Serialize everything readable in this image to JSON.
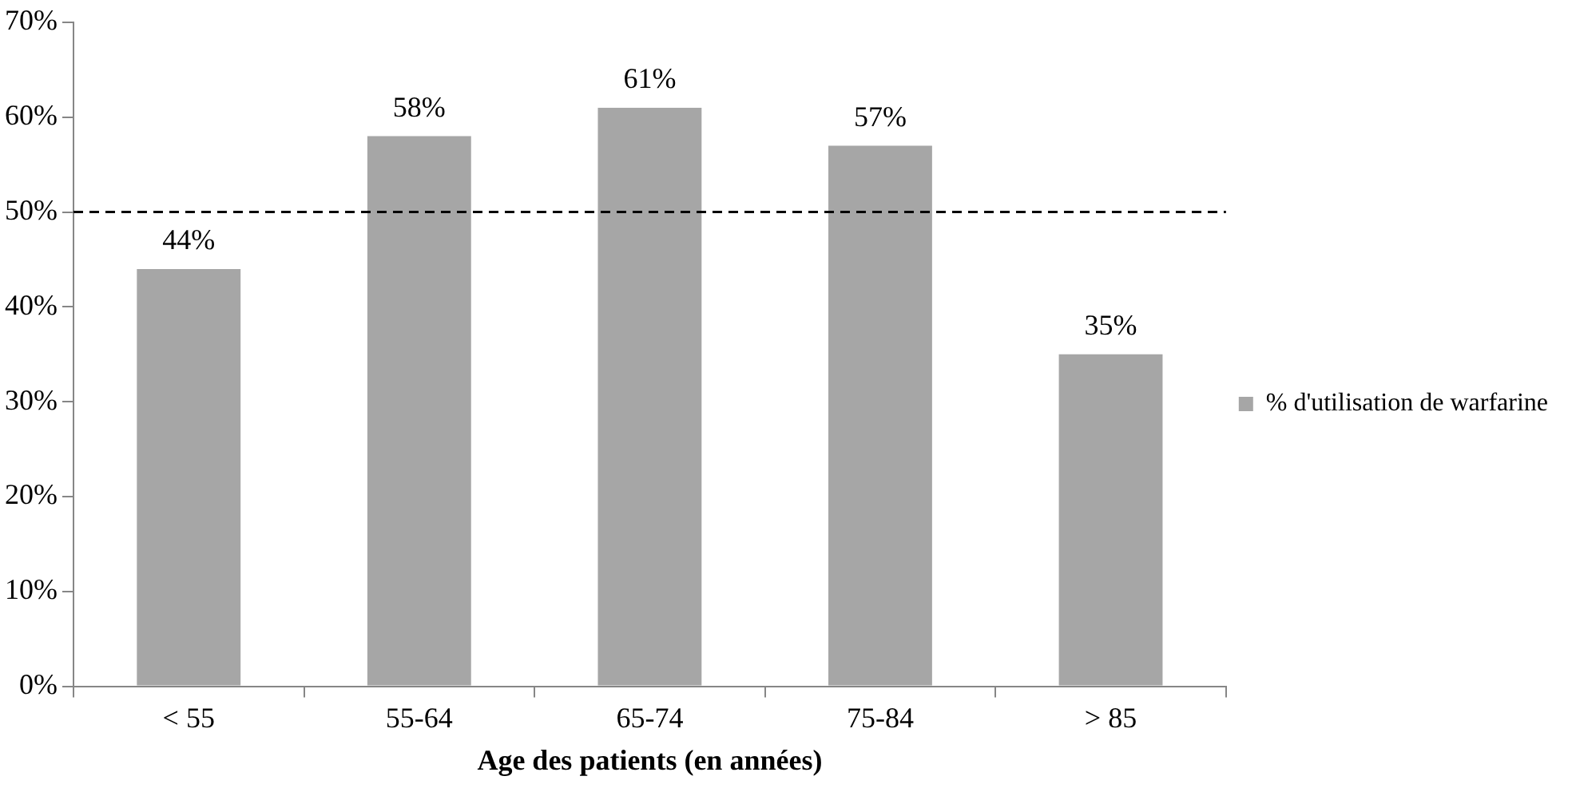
{
  "chart_data": {
    "type": "bar",
    "xlabel": "Age des patients (en années)",
    "categories": [
      "< 55",
      "55-64",
      "65-74",
      "75-84",
      "> 85"
    ],
    "series": [
      {
        "name": "% d'utilisation de warfarine",
        "color": "#a6a6a6",
        "values": [
          44,
          58,
          61,
          57,
          35
        ],
        "value_labels": [
          "44%",
          "58%",
          "61%",
          "57%",
          "35%"
        ]
      }
    ],
    "ylim": [
      0,
      70
    ],
    "yticks": [
      {
        "value": 0,
        "label": "0%"
      },
      {
        "value": 10,
        "label": "10%"
      },
      {
        "value": 20,
        "label": "20%"
      },
      {
        "value": 30,
        "label": "30%"
      },
      {
        "value": 40,
        "label": "40%"
      },
      {
        "value": 50,
        "label": "50%"
      },
      {
        "value": 60,
        "label": "60%"
      },
      {
        "value": 70,
        "label": "70%"
      }
    ],
    "ref_lines": [
      {
        "axis": "y",
        "value": 50,
        "color": "#000000",
        "line_style": "dashed"
      }
    ],
    "grid": false,
    "legend": "right"
  }
}
